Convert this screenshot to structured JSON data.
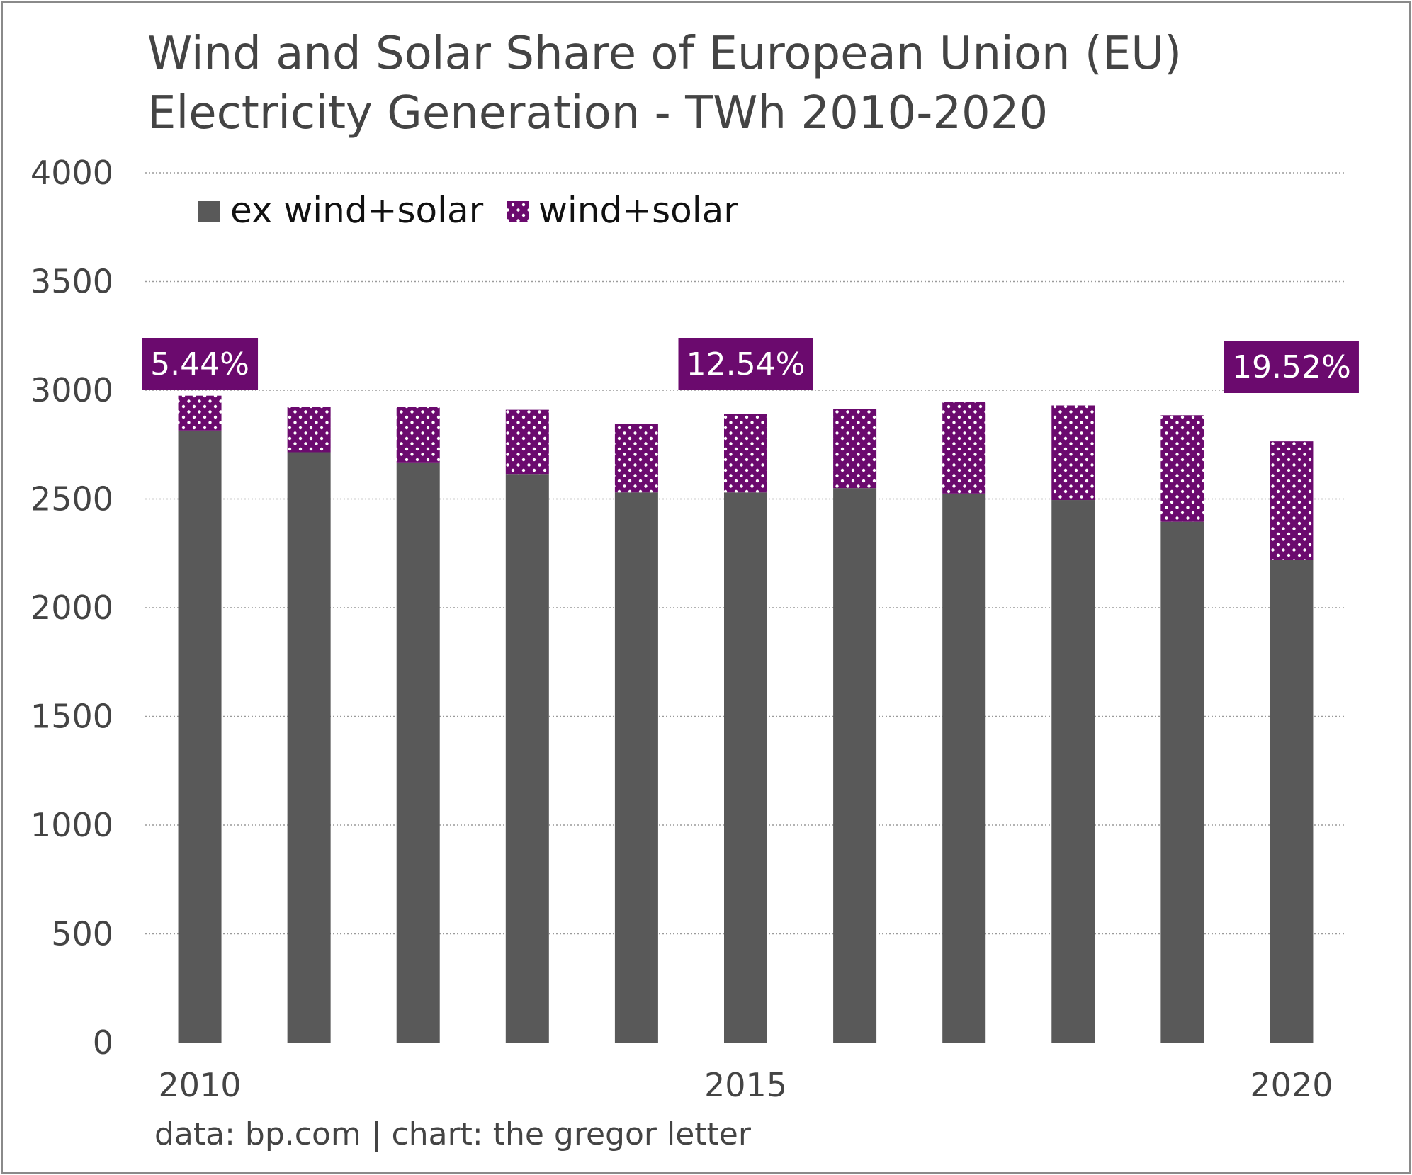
{
  "chart_data": {
    "type": "bar",
    "stacked": true,
    "title_lines": [
      "Wind and Solar Share of European Union (EU)",
      "Electricity Generation - TWh 2010-2020"
    ],
    "source": "data: bp.com | chart: the gregor letter",
    "categories": [
      "2010",
      "2011",
      "2012",
      "2013",
      "2014",
      "2015",
      "2016",
      "2017",
      "2018",
      "2019",
      "2020"
    ],
    "x_tick_labels": [
      "2010",
      "",
      "",
      "",
      "",
      "2015",
      "",
      "",
      "",
      "",
      "2020"
    ],
    "series": [
      {
        "name": "ex wind+solar",
        "color": "#595959",
        "values": [
          2815,
          2715,
          2665,
          2615,
          2530,
          2530,
          2550,
          2525,
          2495,
          2395,
          2220
        ]
      },
      {
        "name": "wind+solar",
        "color": "#6b0a6e",
        "pattern": "white-dots",
        "values": [
          160,
          210,
          260,
          295,
          315,
          360,
          365,
          420,
          435,
          490,
          545
        ]
      }
    ],
    "ylim": [
      0,
      4000
    ],
    "y_ticks": [
      0,
      500,
      1000,
      1500,
      2000,
      2500,
      3000,
      3500,
      4000
    ],
    "grid": true,
    "grid_style": "dotted",
    "legend_position": "top-left",
    "annotations": [
      {
        "category": "2010",
        "text": "5.44%"
      },
      {
        "category": "2015",
        "text": "12.54%"
      },
      {
        "category": "2020",
        "text": "19.52%"
      }
    ],
    "colors": {
      "text": "#444444",
      "grid": "#9a9a9a",
      "label_bg": "#6b0a6e",
      "label_text": "#ffffff"
    }
  }
}
